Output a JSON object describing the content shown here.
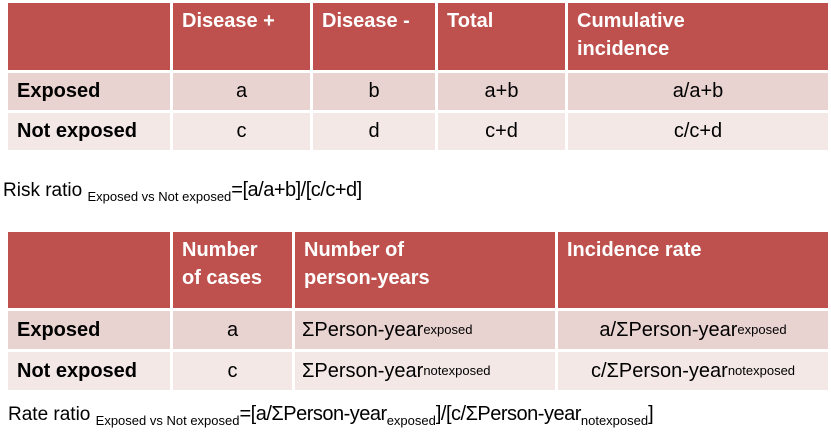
{
  "colors": {
    "header_bg": "#be514d",
    "row_exposed_bg": "#e9d3d1",
    "row_not_exposed_bg": "#f3e8e6",
    "header_text": "#ffffff",
    "body_text": "#000000",
    "page_bg": "#ffffff"
  },
  "risk_table": {
    "headers": [
      "",
      "Disease +",
      "Disease -",
      "Total",
      "Cumulative incidence"
    ],
    "rows": [
      {
        "label": "Exposed",
        "disease_pos": "a",
        "disease_neg": "b",
        "total": "a+b",
        "cum_incidence": "a/a+b"
      },
      {
        "label": "Not exposed",
        "disease_pos": "c",
        "disease_neg": "d",
        "total": "c+d",
        "cum_incidence": "c/c+d"
      }
    ]
  },
  "risk_ratio_line": {
    "prefix": "Risk ratio ",
    "subscript": "Exposed vs Not exposed",
    "formula": "=[a/a+b]/[c/c+d]"
  },
  "rate_table": {
    "headers": [
      "",
      "Number of cases",
      "Number of person-years",
      "Incidence rate"
    ],
    "rows": [
      {
        "label": "Exposed",
        "cases": "a",
        "py_main": "ΣPerson-year",
        "py_sub": "exposed",
        "ir_main": "a/ΣPerson-year",
        "ir_sub": "exposed"
      },
      {
        "label": "Not exposed",
        "cases": "c",
        "py_main": "ΣPerson-year",
        "py_sub": "notexposed",
        "ir_main": "c/ΣPerson-year",
        "ir_sub": "notexposed"
      }
    ]
  },
  "rate_ratio_line": {
    "prefix": "Rate ratio ",
    "subscript": "Exposed vs Not exposed",
    "seg1": "=[a/ΣPerson-year",
    "sub1": "exposed",
    "seg2": "]/[c/ΣPerson-year",
    "sub2": "notexposed",
    "seg3": "]"
  }
}
